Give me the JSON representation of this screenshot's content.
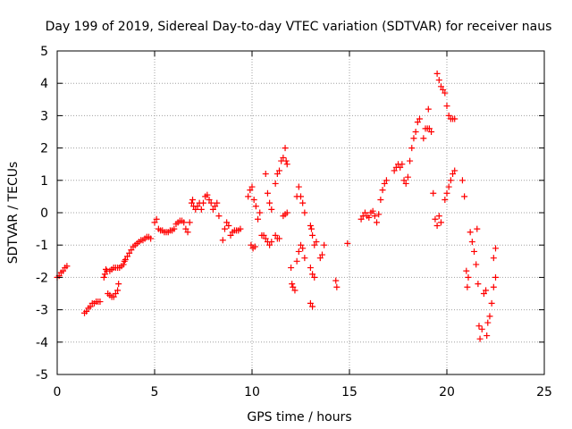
{
  "chart_data": {
    "type": "scatter",
    "title": "Day 199 of 2019, Sidereal Day-to-day VTEC variation (SDTVAR) for receiver naus",
    "xlabel": "GPS time / hours",
    "ylabel": "SDTVAR / TECUs",
    "xlim": [
      0,
      25
    ],
    "ylim": [
      -5,
      5
    ],
    "xticks": [
      0,
      5,
      10,
      15,
      20,
      25
    ],
    "yticks": [
      -5,
      -4,
      -3,
      -2,
      -1,
      0,
      1,
      2,
      3,
      4,
      5
    ],
    "grid": true,
    "marker": "+",
    "series": [
      {
        "name": "SDTVAR",
        "color": "#ff0000",
        "points": [
          [
            0.0,
            -2.0
          ],
          [
            0.1,
            -1.95
          ],
          [
            0.2,
            -1.85
          ],
          [
            0.3,
            -1.8
          ],
          [
            0.4,
            -1.7
          ],
          [
            0.5,
            -1.65
          ],
          [
            1.4,
            -3.1
          ],
          [
            1.5,
            -3.05
          ],
          [
            1.6,
            -2.95
          ],
          [
            1.7,
            -2.9
          ],
          [
            1.8,
            -2.8
          ],
          [
            1.9,
            -2.8
          ],
          [
            2.0,
            -2.75
          ],
          [
            2.1,
            -2.75
          ],
          [
            2.2,
            -2.75
          ],
          [
            2.4,
            -2.0
          ],
          [
            2.45,
            -1.9
          ],
          [
            2.5,
            -1.75
          ],
          [
            2.55,
            -1.8
          ],
          [
            2.6,
            -2.5
          ],
          [
            2.7,
            -2.55
          ],
          [
            2.8,
            -2.6
          ],
          [
            2.9,
            -2.6
          ],
          [
            3.0,
            -2.5
          ],
          [
            3.1,
            -2.4
          ],
          [
            3.15,
            -2.2
          ],
          [
            2.7,
            -1.8
          ],
          [
            2.8,
            -1.75
          ],
          [
            2.9,
            -1.7
          ],
          [
            3.0,
            -1.7
          ],
          [
            3.1,
            -1.7
          ],
          [
            3.2,
            -1.7
          ],
          [
            3.3,
            -1.65
          ],
          [
            3.4,
            -1.6
          ],
          [
            3.45,
            -1.5
          ],
          [
            3.5,
            -1.45
          ],
          [
            3.6,
            -1.35
          ],
          [
            3.7,
            -1.25
          ],
          [
            3.8,
            -1.15
          ],
          [
            3.9,
            -1.05
          ],
          [
            4.0,
            -1.0
          ],
          [
            4.1,
            -0.95
          ],
          [
            4.2,
            -0.9
          ],
          [
            4.3,
            -0.85
          ],
          [
            4.4,
            -0.85
          ],
          [
            4.5,
            -0.8
          ],
          [
            4.6,
            -0.75
          ],
          [
            4.7,
            -0.75
          ],
          [
            4.8,
            -0.8
          ],
          [
            5.0,
            -0.3
          ],
          [
            5.1,
            -0.2
          ],
          [
            5.2,
            -0.5
          ],
          [
            5.3,
            -0.55
          ],
          [
            5.4,
            -0.55
          ],
          [
            5.5,
            -0.6
          ],
          [
            5.6,
            -0.6
          ],
          [
            5.7,
            -0.6
          ],
          [
            5.8,
            -0.55
          ],
          [
            5.9,
            -0.55
          ],
          [
            6.0,
            -0.5
          ],
          [
            6.1,
            -0.35
          ],
          [
            6.2,
            -0.3
          ],
          [
            6.3,
            -0.25
          ],
          [
            6.4,
            -0.25
          ],
          [
            6.5,
            -0.3
          ],
          [
            6.6,
            -0.5
          ],
          [
            6.7,
            -0.6
          ],
          [
            6.8,
            -0.3
          ],
          [
            6.9,
            0.3
          ],
          [
            6.95,
            0.4
          ],
          [
            7.0,
            0.2
          ],
          [
            7.1,
            0.1
          ],
          [
            7.2,
            0.2
          ],
          [
            7.3,
            0.3
          ],
          [
            7.4,
            0.1
          ],
          [
            7.5,
            0.3
          ],
          [
            7.6,
            0.5
          ],
          [
            7.7,
            0.55
          ],
          [
            7.8,
            0.4
          ],
          [
            7.9,
            0.3
          ],
          [
            8.0,
            0.1
          ],
          [
            8.1,
            0.2
          ],
          [
            8.2,
            0.3
          ],
          [
            8.3,
            -0.1
          ],
          [
            8.5,
            -0.85
          ],
          [
            8.6,
            -0.5
          ],
          [
            8.7,
            -0.3
          ],
          [
            8.8,
            -0.4
          ],
          [
            8.9,
            -0.7
          ],
          [
            9.0,
            -0.6
          ],
          [
            9.1,
            -0.55
          ],
          [
            9.2,
            -0.55
          ],
          [
            9.3,
            -0.55
          ],
          [
            9.4,
            -0.5
          ],
          [
            9.8,
            0.5
          ],
          [
            9.9,
            0.7
          ],
          [
            10.0,
            0.8
          ],
          [
            10.1,
            0.4
          ],
          [
            10.2,
            0.2
          ],
          [
            9.95,
            -1.0
          ],
          [
            10.05,
            -1.1
          ],
          [
            10.15,
            -1.05
          ],
          [
            10.3,
            -0.2
          ],
          [
            10.4,
            0.0
          ],
          [
            10.5,
            -0.7
          ],
          [
            10.6,
            -0.7
          ],
          [
            10.7,
            -0.8
          ],
          [
            10.8,
            -0.9
          ],
          [
            10.9,
            -1.0
          ],
          [
            11.0,
            -0.9
          ],
          [
            10.7,
            1.2
          ],
          [
            10.8,
            0.6
          ],
          [
            10.9,
            0.3
          ],
          [
            11.0,
            0.1
          ],
          [
            11.2,
            0.9
          ],
          [
            11.3,
            1.2
          ],
          [
            11.4,
            1.3
          ],
          [
            11.5,
            1.6
          ],
          [
            11.6,
            1.7
          ],
          [
            11.7,
            2.0
          ],
          [
            11.75,
            1.6
          ],
          [
            11.8,
            1.5
          ],
          [
            11.2,
            -0.7
          ],
          [
            11.3,
            -0.8
          ],
          [
            11.4,
            -0.8
          ],
          [
            11.6,
            -0.1
          ],
          [
            11.7,
            -0.05
          ],
          [
            11.8,
            0.0
          ],
          [
            12.0,
            -1.7
          ],
          [
            12.05,
            -2.2
          ],
          [
            12.1,
            -2.3
          ],
          [
            12.2,
            -2.4
          ],
          [
            12.3,
            -1.5
          ],
          [
            12.4,
            -1.2
          ],
          [
            12.5,
            -1.0
          ],
          [
            12.6,
            -1.1
          ],
          [
            12.7,
            -1.4
          ],
          [
            12.3,
            0.5
          ],
          [
            12.4,
            0.8
          ],
          [
            12.5,
            0.5
          ],
          [
            12.6,
            0.3
          ],
          [
            12.7,
            0.0
          ],
          [
            13.0,
            -0.4
          ],
          [
            13.05,
            -0.5
          ],
          [
            13.1,
            -0.7
          ],
          [
            13.2,
            -1.0
          ],
          [
            13.3,
            -0.9
          ],
          [
            13.0,
            -1.7
          ],
          [
            13.1,
            -1.9
          ],
          [
            13.2,
            -2.0
          ],
          [
            13.0,
            -2.8
          ],
          [
            13.1,
            -2.9
          ],
          [
            13.5,
            -1.4
          ],
          [
            13.6,
            -1.3
          ],
          [
            13.7,
            -1.0
          ],
          [
            14.3,
            -2.1
          ],
          [
            14.35,
            -2.3
          ],
          [
            14.9,
            -0.95
          ],
          [
            15.6,
            -0.2
          ],
          [
            15.7,
            -0.1
          ],
          [
            15.8,
            0.0
          ],
          [
            15.9,
            -0.1
          ],
          [
            16.0,
            -0.15
          ],
          [
            16.1,
            0.0
          ],
          [
            16.2,
            0.05
          ],
          [
            16.3,
            -0.1
          ],
          [
            16.4,
            -0.3
          ],
          [
            16.5,
            -0.05
          ],
          [
            16.6,
            0.4
          ],
          [
            16.7,
            0.7
          ],
          [
            16.8,
            0.9
          ],
          [
            16.9,
            1.0
          ],
          [
            17.3,
            1.3
          ],
          [
            17.4,
            1.4
          ],
          [
            17.5,
            1.5
          ],
          [
            17.6,
            1.4
          ],
          [
            17.7,
            1.5
          ],
          [
            17.8,
            1.0
          ],
          [
            17.9,
            0.9
          ],
          [
            18.0,
            1.1
          ],
          [
            18.1,
            1.6
          ],
          [
            18.2,
            2.0
          ],
          [
            18.3,
            2.3
          ],
          [
            18.4,
            2.5
          ],
          [
            18.5,
            2.8
          ],
          [
            18.6,
            2.9
          ],
          [
            18.8,
            2.3
          ],
          [
            18.9,
            2.6
          ],
          [
            19.0,
            2.6
          ],
          [
            19.05,
            3.2
          ],
          [
            19.1,
            2.6
          ],
          [
            19.2,
            2.5
          ],
          [
            19.3,
            0.6
          ],
          [
            19.4,
            -0.2
          ],
          [
            19.5,
            -0.4
          ],
          [
            19.6,
            -0.1
          ],
          [
            19.7,
            -0.3
          ],
          [
            19.5,
            4.3
          ],
          [
            19.6,
            4.1
          ],
          [
            19.7,
            3.9
          ],
          [
            19.8,
            3.8
          ],
          [
            19.9,
            3.7
          ],
          [
            20.0,
            3.3
          ],
          [
            20.1,
            3.0
          ],
          [
            20.2,
            2.9
          ],
          [
            20.3,
            2.9
          ],
          [
            20.4,
            2.9
          ],
          [
            19.9,
            0.4
          ],
          [
            20.0,
            0.6
          ],
          [
            20.1,
            0.8
          ],
          [
            20.2,
            1.0
          ],
          [
            20.3,
            1.2
          ],
          [
            20.4,
            1.3
          ],
          [
            20.8,
            1.0
          ],
          [
            20.9,
            0.5
          ],
          [
            21.0,
            -1.8
          ],
          [
            21.05,
            -2.3
          ],
          [
            21.1,
            -2.0
          ],
          [
            21.2,
            -0.6
          ],
          [
            21.3,
            -0.9
          ],
          [
            21.4,
            -1.2
          ],
          [
            21.5,
            -1.6
          ],
          [
            21.55,
            -0.5
          ],
          [
            21.6,
            -2.2
          ],
          [
            21.65,
            -3.5
          ],
          [
            21.7,
            -3.9
          ],
          [
            21.8,
            -3.6
          ],
          [
            21.9,
            -2.5
          ],
          [
            22.0,
            -2.4
          ],
          [
            22.05,
            -3.8
          ],
          [
            22.1,
            -3.4
          ],
          [
            22.2,
            -3.2
          ],
          [
            22.3,
            -2.8
          ],
          [
            22.4,
            -2.3
          ],
          [
            22.5,
            -2.0
          ],
          [
            22.4,
            -1.4
          ],
          [
            22.5,
            -1.1
          ]
        ]
      }
    ]
  }
}
